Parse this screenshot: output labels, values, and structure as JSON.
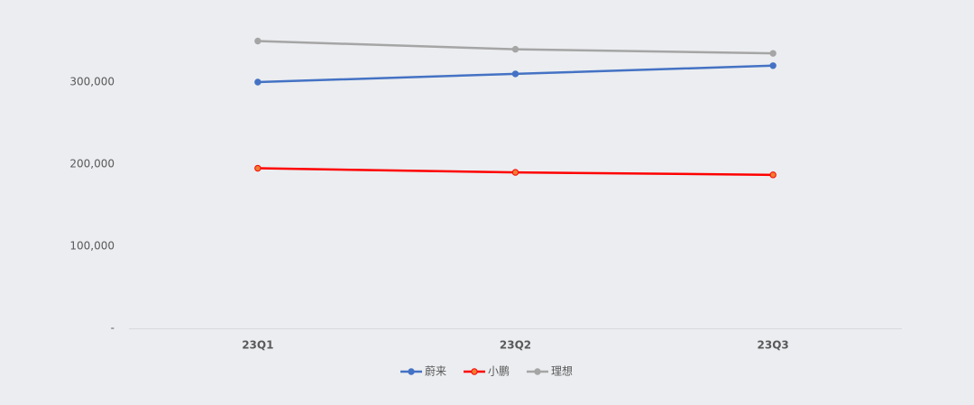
{
  "chart_data": {
    "type": "line",
    "categories": [
      "23Q1",
      "23Q2",
      "23Q3"
    ],
    "series": [
      {
        "name": "蔚来",
        "color": "#4472c4",
        "values": [
          300000,
          310000,
          320000
        ]
      },
      {
        "name": "小鹏",
        "color": "#ff0000",
        "marker_color": "#ed7d31",
        "values": [
          195000,
          190000,
          187000
        ]
      },
      {
        "name": "理想",
        "color": "#a5a5a5",
        "values": [
          350000,
          340000,
          335000
        ]
      }
    ],
    "ylim": [
      0,
      400000
    ],
    "yticks": [
      {
        "value": 0,
        "label": "-"
      },
      {
        "value": 100000,
        "label": "100,000"
      },
      {
        "value": 200000,
        "label": "200,000"
      },
      {
        "value": 300000,
        "label": "300,000"
      }
    ],
    "grid": false,
    "legend": "bottom"
  }
}
